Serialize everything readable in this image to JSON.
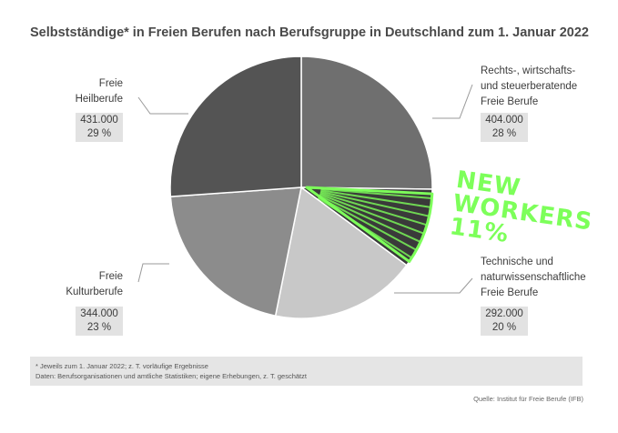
{
  "chart_data": {
    "type": "pie",
    "title": "Selbstständige* in Freien Berufen nach Berufsgruppe in Deutschland zum 1. Januar 2022",
    "slices": [
      {
        "name": "Rechts-, wirtschafts- und steuerberatende Freie Berufe",
        "label_lines": [
          "Rechts-, wirtschafts-",
          "und steuerberatende",
          "Freie Berufe"
        ],
        "value_label": "404.000",
        "percent_label": "28 %",
        "value": 404000,
        "percent": 28,
        "color": "#6f6f6f"
      },
      {
        "name": "New Workers",
        "label_lines": [],
        "value_label": "",
        "percent_label": "11 %",
        "value": null,
        "percent": 11,
        "color": "#3a3a3a"
      },
      {
        "name": "Technische und naturwissenschaftliche Freie Berufe",
        "label_lines": [
          "Technische und",
          "naturwissenschaftliche",
          "Freie Berufe"
        ],
        "value_label": "292.000",
        "percent_label": "20 %",
        "value": 292000,
        "percent": 20,
        "color": "#c8c8c8"
      },
      {
        "name": "Freie Kulturberufe",
        "label_lines": [
          "Freie",
          "Kulturberufe"
        ],
        "value_label": "344.000",
        "percent_label": "23 %",
        "value": 344000,
        "percent": 23,
        "color": "#8c8c8c"
      },
      {
        "name": "Freie Heilberufe",
        "label_lines": [
          "Freie",
          "Heilberufe"
        ],
        "value_label": "431.000",
        "percent_label": "29 %",
        "value": 431000,
        "percent": 29,
        "color": "#545454"
      }
    ],
    "annotation": {
      "text_lines": [
        "NEW",
        "WORKERS 11%"
      ],
      "color": "#7dff5a"
    }
  },
  "footnote": {
    "line1": "* Jeweils zum 1. Januar 2022; z. T. vorläufige Ergebnisse",
    "line2": "Daten: Berufsorganisationen und amtliche Statistiken; eigene Erhebungen, z. T. geschätzt"
  },
  "source": "Quelle: Institut für Freie Berufe (IFB)"
}
